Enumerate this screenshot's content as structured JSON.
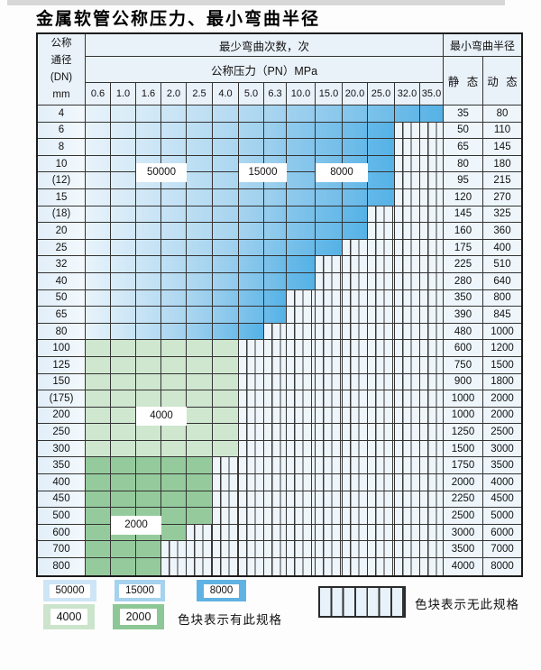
{
  "title": "金属软管公称压力、最小弯曲半径",
  "table": {
    "dn_header_lines": [
      "公称",
      "通径",
      "(DN)",
      "mm"
    ],
    "bend_cycles_header": "最少弯曲次数，次",
    "pressure_header": "公称压力（PN）MPa",
    "pressure_columns": [
      "0.6",
      "1.0",
      "1.6",
      "2.0",
      "2.5",
      "4.0",
      "5.0",
      "6.3",
      "10.0",
      "15.0",
      "20.0",
      "25.0",
      "32.0",
      "35.0"
    ],
    "radius_header": "最小弯曲半径",
    "static_header": "静 态",
    "dynamic_header": "动 态",
    "rows": [
      {
        "dn": "4",
        "colored": 14,
        "zone": "blue",
        "static": "35",
        "dynamic": "80"
      },
      {
        "dn": "6",
        "colored": 12,
        "zone": "blue",
        "static": "50",
        "dynamic": "110"
      },
      {
        "dn": "8",
        "colored": 12,
        "zone": "blue",
        "static": "65",
        "dynamic": "145"
      },
      {
        "dn": "10",
        "colored": 12,
        "zone": "blue",
        "static": "80",
        "dynamic": "180"
      },
      {
        "dn": "(12)",
        "colored": 12,
        "zone": "blue",
        "static": "95",
        "dynamic": "215"
      },
      {
        "dn": "15",
        "colored": 12,
        "zone": "blue",
        "static": "120",
        "dynamic": "270"
      },
      {
        "dn": "(18)",
        "colored": 11,
        "zone": "blue",
        "static": "145",
        "dynamic": "325"
      },
      {
        "dn": "20",
        "colored": 11,
        "zone": "blue",
        "static": "160",
        "dynamic": "360"
      },
      {
        "dn": "25",
        "colored": 10,
        "zone": "blue",
        "static": "175",
        "dynamic": "400"
      },
      {
        "dn": "32",
        "colored": 9,
        "zone": "blue",
        "static": "225",
        "dynamic": "510"
      },
      {
        "dn": "40",
        "colored": 9,
        "zone": "blue",
        "static": "280",
        "dynamic": "640"
      },
      {
        "dn": "50",
        "colored": 8,
        "zone": "blue",
        "static": "350",
        "dynamic": "800"
      },
      {
        "dn": "65",
        "colored": 8,
        "zone": "blue",
        "static": "390",
        "dynamic": "845"
      },
      {
        "dn": "80",
        "colored": 7,
        "zone": "blue",
        "static": "480",
        "dynamic": "1000"
      },
      {
        "dn": "100",
        "colored": 6,
        "zone": "g4",
        "static": "600",
        "dynamic": "1200"
      },
      {
        "dn": "125",
        "colored": 6,
        "zone": "g4",
        "static": "750",
        "dynamic": "1500"
      },
      {
        "dn": "150",
        "colored": 6,
        "zone": "g4",
        "static": "900",
        "dynamic": "1800"
      },
      {
        "dn": "(175)",
        "colored": 6,
        "zone": "g4",
        "static": "1000",
        "dynamic": "2000"
      },
      {
        "dn": "200",
        "colored": 6,
        "zone": "g4",
        "static": "1000",
        "dynamic": "2000"
      },
      {
        "dn": "250",
        "colored": 6,
        "zone": "g4",
        "static": "1250",
        "dynamic": "2500"
      },
      {
        "dn": "300",
        "colored": 6,
        "zone": "g4",
        "static": "1500",
        "dynamic": "3000"
      },
      {
        "dn": "350",
        "colored": 5,
        "zone": "g2",
        "static": "1750",
        "dynamic": "3500"
      },
      {
        "dn": "400",
        "colored": 5,
        "zone": "g2",
        "static": "2000",
        "dynamic": "4000"
      },
      {
        "dn": "450",
        "colored": 5,
        "zone": "g2",
        "static": "2250",
        "dynamic": "4500"
      },
      {
        "dn": "500",
        "colored": 5,
        "zone": "g2",
        "static": "2500",
        "dynamic": "5000"
      },
      {
        "dn": "600",
        "colored": 4,
        "zone": "g2",
        "static": "3000",
        "dynamic": "6000"
      },
      {
        "dn": "700",
        "colored": 3,
        "zone": "g2",
        "static": "3500",
        "dynamic": "7000"
      },
      {
        "dn": "800",
        "colored": 3,
        "zone": "g2",
        "static": "4000",
        "dynamic": "8000"
      }
    ],
    "overlays": [
      {
        "text": "50000",
        "col_start": 2,
        "col_end": 3,
        "row": 4,
        "mode": "boundary"
      },
      {
        "text": "15000",
        "col_start": 6,
        "col_end": 7,
        "row": 4,
        "mode": "boundary"
      },
      {
        "text": "8000",
        "col_start": 9,
        "col_end": 10,
        "row": 4,
        "mode": "boundary"
      },
      {
        "text": "4000",
        "col_start": 2,
        "col_end": 3,
        "row": 18,
        "mode": "center"
      },
      {
        "text": "2000",
        "col_start": 1,
        "col_end": 2,
        "row": 25,
        "mode": "boundary"
      }
    ]
  },
  "legend": {
    "cycle_items": [
      {
        "label": "50000",
        "color": "#cde5f6"
      },
      {
        "label": "15000",
        "color": "#a5d2ee"
      },
      {
        "label": "8000",
        "color": "#60b2e2"
      },
      {
        "label": "4000",
        "color": "#cbe4cb"
      },
      {
        "label": "2000",
        "color": "#8cc795"
      }
    ],
    "has_spec_note": "色块表示有此规格",
    "no_spec_note": "色块表示无此规格"
  },
  "colors": {
    "blue_start": "#e8f3fb",
    "blue_mid": "#a5d3ef",
    "blue_end": "#55b2e6",
    "green_4000": "#cfe6cf",
    "green_2000": "#95cb9c",
    "stripe_bg": "#eef5fb",
    "header_bg": "#e9f1f9",
    "value_bg": "#eef6fc",
    "grid": "#333333"
  }
}
